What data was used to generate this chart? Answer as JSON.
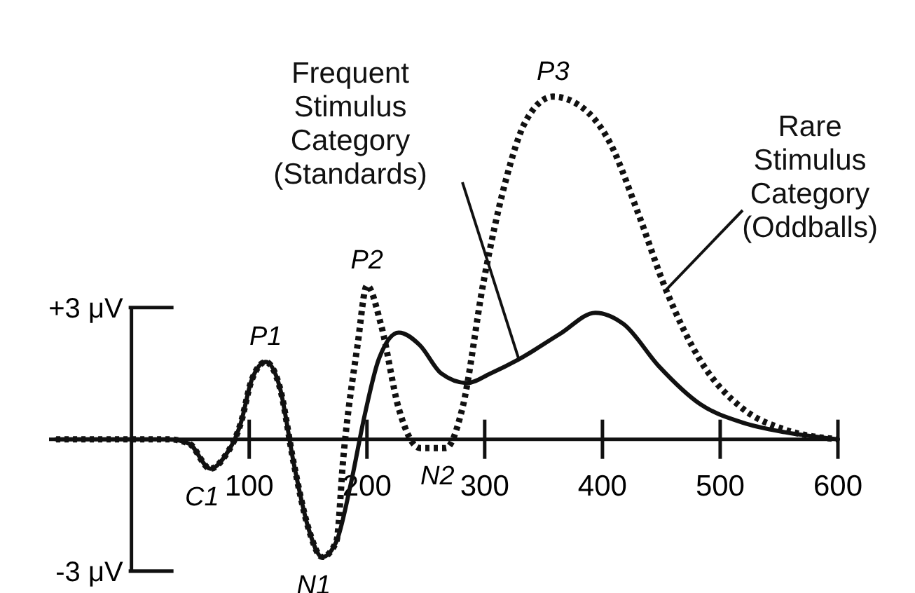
{
  "chart_data": {
    "type": "line",
    "xlim": [
      -70,
      600
    ],
    "ylim": [
      -3.5,
      10
    ],
    "xticks": [
      100,
      200,
      300,
      400,
      500,
      600
    ],
    "yticks": [
      {
        "value": 3,
        "label": "+3 μV"
      },
      {
        "value": -3,
        "label": "-3 μV"
      }
    ],
    "series": [
      {
        "name": "Frequent Stimulus Category (Standards)",
        "color": "#111111",
        "line_style": "solid",
        "x": [
          -64,
          31,
          49,
          67,
          79,
          93,
          102,
          114,
          126,
          138,
          150,
          162,
          174,
          186,
          198,
          210,
          227,
          245,
          263,
          285,
          305,
          329,
          364,
          394,
          418,
          448,
          483,
          519,
          555,
          600
        ],
        "values": [
          0,
          0,
          -0.1,
          -0.67,
          -0.4,
          0.38,
          1.34,
          1.76,
          1.18,
          -0.57,
          -2.0,
          -2.68,
          -2.33,
          -1.05,
          0.54,
          1.82,
          2.43,
          2.14,
          1.5,
          1.28,
          1.5,
          1.82,
          2.4,
          2.88,
          2.62,
          1.66,
          0.8,
          0.38,
          0.16,
          0
        ]
      },
      {
        "name": "Rare Stimulus Category (Oddballs)",
        "color": "#111111",
        "line_style": "dotted",
        "x": [
          -64,
          31,
          49,
          67,
          79,
          93,
          102,
          114,
          126,
          138,
          150,
          162,
          174,
          180,
          192,
          200,
          212,
          227,
          245,
          267,
          281,
          299,
          317,
          335,
          358,
          382,
          406,
          430,
          454,
          483,
          519,
          555,
          600
        ],
        "values": [
          0,
          0,
          -0.1,
          -0.67,
          -0.4,
          0.38,
          1.34,
          1.76,
          1.18,
          -0.57,
          -2.0,
          -2.68,
          -2.33,
          -0.4,
          2.14,
          3.5,
          2.6,
          0.7,
          -0.2,
          -0.2,
          0.7,
          3.58,
          5.8,
          7.25,
          7.8,
          7.57,
          6.77,
          5.17,
          3.4,
          1.8,
          0.7,
          0.22,
          0
        ]
      }
    ],
    "annotations": [
      {
        "text": "C1",
        "x": 67,
        "y": -0.67
      },
      {
        "text": "P1",
        "x": 114,
        "y": 1.76
      },
      {
        "text": "N1",
        "x": 162,
        "y": -2.68
      },
      {
        "text": "P2",
        "x": 200,
        "y": 3.5
      },
      {
        "text": "N2",
        "x": 267,
        "y": -0.2
      },
      {
        "text": "P3",
        "x": 358,
        "y": 7.8
      }
    ]
  }
}
